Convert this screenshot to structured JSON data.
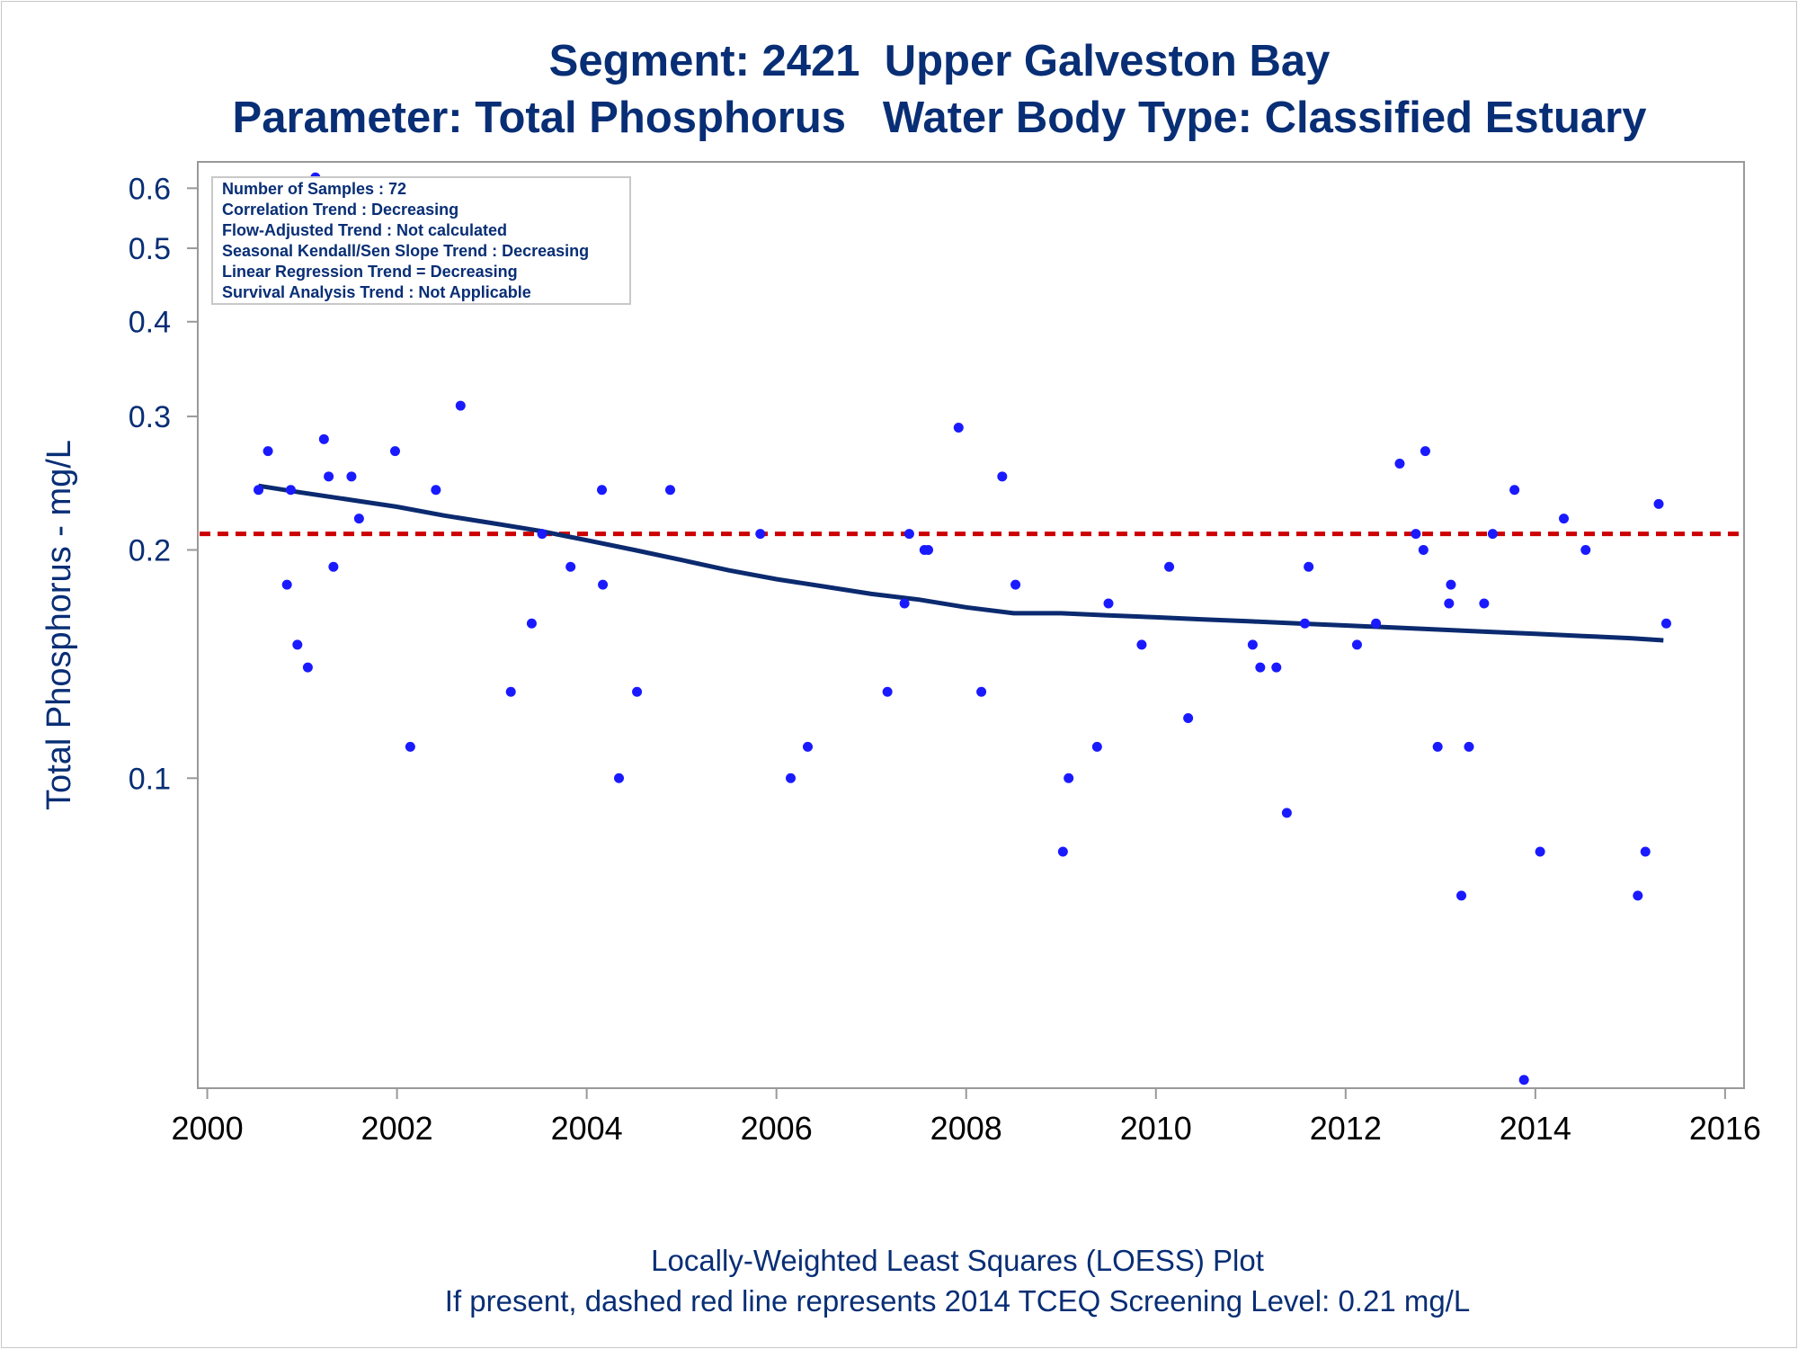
{
  "title": {
    "line1": "Segment: 2421  Upper Galveston Bay",
    "line2": "Parameter: Total Phosphorus   Water Body Type: Classified Estuary"
  },
  "footnotes": {
    "line1": "Locally-Weighted Least Squares (LOESS) Plot",
    "line2": "If present, dashed red line represents 2014 TCEQ Screening Level: 0.21 mg/L"
  },
  "stats_box": [
    "Number of Samples : 72",
    "Correlation Trend : Decreasing",
    "Flow-Adjusted Trend : Not calculated",
    "Seasonal Kendall/Sen Slope Trend : Decreasing",
    "Linear Regression Trend = Decreasing",
    "Survival Analysis Trend : Not Applicable"
  ],
  "colors": {
    "points": "#1a1aff",
    "loess": "#0b2a6f",
    "screening_line": "#cc0000",
    "text": "#082e75",
    "frame": "#999999"
  },
  "chart_data": {
    "type": "scatter",
    "ylabel": "Total Phosphorus - mg/L",
    "xlabel": "",
    "x_ticks": [
      2000,
      2002,
      2004,
      2006,
      2008,
      2010,
      2012,
      2014,
      2016
    ],
    "y_ticks": [
      0.1,
      0.2,
      0.3,
      0.4,
      0.5,
      0.6
    ],
    "y_tick_labels": [
      "0.1",
      "0.2",
      "0.3",
      "0.4",
      "0.5",
      "0.6"
    ],
    "xlim": [
      1999.9,
      2016.2
    ],
    "ylim": [
      0.039,
      0.65
    ],
    "y_scale": "log",
    "grid": false,
    "screening_level": 0.21,
    "points": [
      [
        2000.54,
        0.24
      ],
      [
        2000.64,
        0.27
      ],
      [
        2000.84,
        0.18
      ],
      [
        2000.88,
        0.24
      ],
      [
        2000.95,
        0.15
      ],
      [
        2001.06,
        0.14
      ],
      [
        2001.14,
        0.62
      ],
      [
        2001.23,
        0.28
      ],
      [
        2001.28,
        0.25
      ],
      [
        2001.33,
        0.19
      ],
      [
        2001.52,
        0.25
      ],
      [
        2001.6,
        0.22
      ],
      [
        2001.98,
        0.27
      ],
      [
        2002.14,
        0.11
      ],
      [
        2002.41,
        0.24
      ],
      [
        2002.67,
        0.31
      ],
      [
        2003.2,
        0.13
      ],
      [
        2003.42,
        0.16
      ],
      [
        2003.53,
        0.21
      ],
      [
        2003.83,
        0.19
      ],
      [
        2004.16,
        0.24
      ],
      [
        2004.17,
        0.18
      ],
      [
        2004.34,
        0.1
      ],
      [
        2004.53,
        0.13
      ],
      [
        2004.88,
        0.24
      ],
      [
        2005.83,
        0.21
      ],
      [
        2006.15,
        0.1
      ],
      [
        2006.33,
        0.11
      ],
      [
        2007.17,
        0.13
      ],
      [
        2007.35,
        0.17
      ],
      [
        2007.4,
        0.21
      ],
      [
        2007.56,
        0.2
      ],
      [
        2007.6,
        0.2
      ],
      [
        2007.92,
        0.29
      ],
      [
        2008.16,
        0.13
      ],
      [
        2008.38,
        0.25
      ],
      [
        2008.52,
        0.18
      ],
      [
        2009.02,
        0.08
      ],
      [
        2009.08,
        0.1
      ],
      [
        2009.38,
        0.11
      ],
      [
        2009.5,
        0.17
      ],
      [
        2009.85,
        0.15
      ],
      [
        2010.14,
        0.19
      ],
      [
        2010.34,
        0.12
      ],
      [
        2011.02,
        0.15
      ],
      [
        2011.1,
        0.14
      ],
      [
        2011.27,
        0.14
      ],
      [
        2011.38,
        0.09
      ],
      [
        2011.57,
        0.16
      ],
      [
        2011.61,
        0.19
      ],
      [
        2012.12,
        0.15
      ],
      [
        2012.32,
        0.16
      ],
      [
        2012.57,
        0.26
      ],
      [
        2012.74,
        0.21
      ],
      [
        2012.82,
        0.2
      ],
      [
        2012.84,
        0.27
      ],
      [
        2012.97,
        0.11
      ],
      [
        2013.09,
        0.17
      ],
      [
        2013.11,
        0.18
      ],
      [
        2013.22,
        0.07
      ],
      [
        2013.3,
        0.11
      ],
      [
        2013.46,
        0.17
      ],
      [
        2013.55,
        0.21
      ],
      [
        2013.78,
        0.24
      ],
      [
        2013.88,
        0.04
      ],
      [
        2014.05,
        0.08
      ],
      [
        2014.3,
        0.22
      ],
      [
        2014.53,
        0.2
      ],
      [
        2015.08,
        0.07
      ],
      [
        2015.16,
        0.08
      ],
      [
        2015.3,
        0.23
      ],
      [
        2015.38,
        0.16
      ]
    ],
    "loess": [
      [
        2000.54,
        0.243
      ],
      [
        2001.0,
        0.238
      ],
      [
        2001.5,
        0.233
      ],
      [
        2002.0,
        0.228
      ],
      [
        2002.5,
        0.222
      ],
      [
        2003.0,
        0.217
      ],
      [
        2003.5,
        0.212
      ],
      [
        2004.0,
        0.206
      ],
      [
        2004.5,
        0.2
      ],
      [
        2005.0,
        0.194
      ],
      [
        2005.5,
        0.188
      ],
      [
        2006.0,
        0.183
      ],
      [
        2006.5,
        0.179
      ],
      [
        2007.0,
        0.175
      ],
      [
        2007.5,
        0.172
      ],
      [
        2008.0,
        0.168
      ],
      [
        2008.5,
        0.165
      ],
      [
        2009.0,
        0.165
      ],
      [
        2009.5,
        0.164
      ],
      [
        2010.0,
        0.163
      ],
      [
        2010.5,
        0.162
      ],
      [
        2011.0,
        0.161
      ],
      [
        2011.5,
        0.16
      ],
      [
        2012.0,
        0.159
      ],
      [
        2012.5,
        0.158
      ],
      [
        2013.0,
        0.157
      ],
      [
        2013.5,
        0.156
      ],
      [
        2014.0,
        0.155
      ],
      [
        2014.5,
        0.154
      ],
      [
        2015.0,
        0.153
      ],
      [
        2015.35,
        0.152
      ]
    ]
  }
}
